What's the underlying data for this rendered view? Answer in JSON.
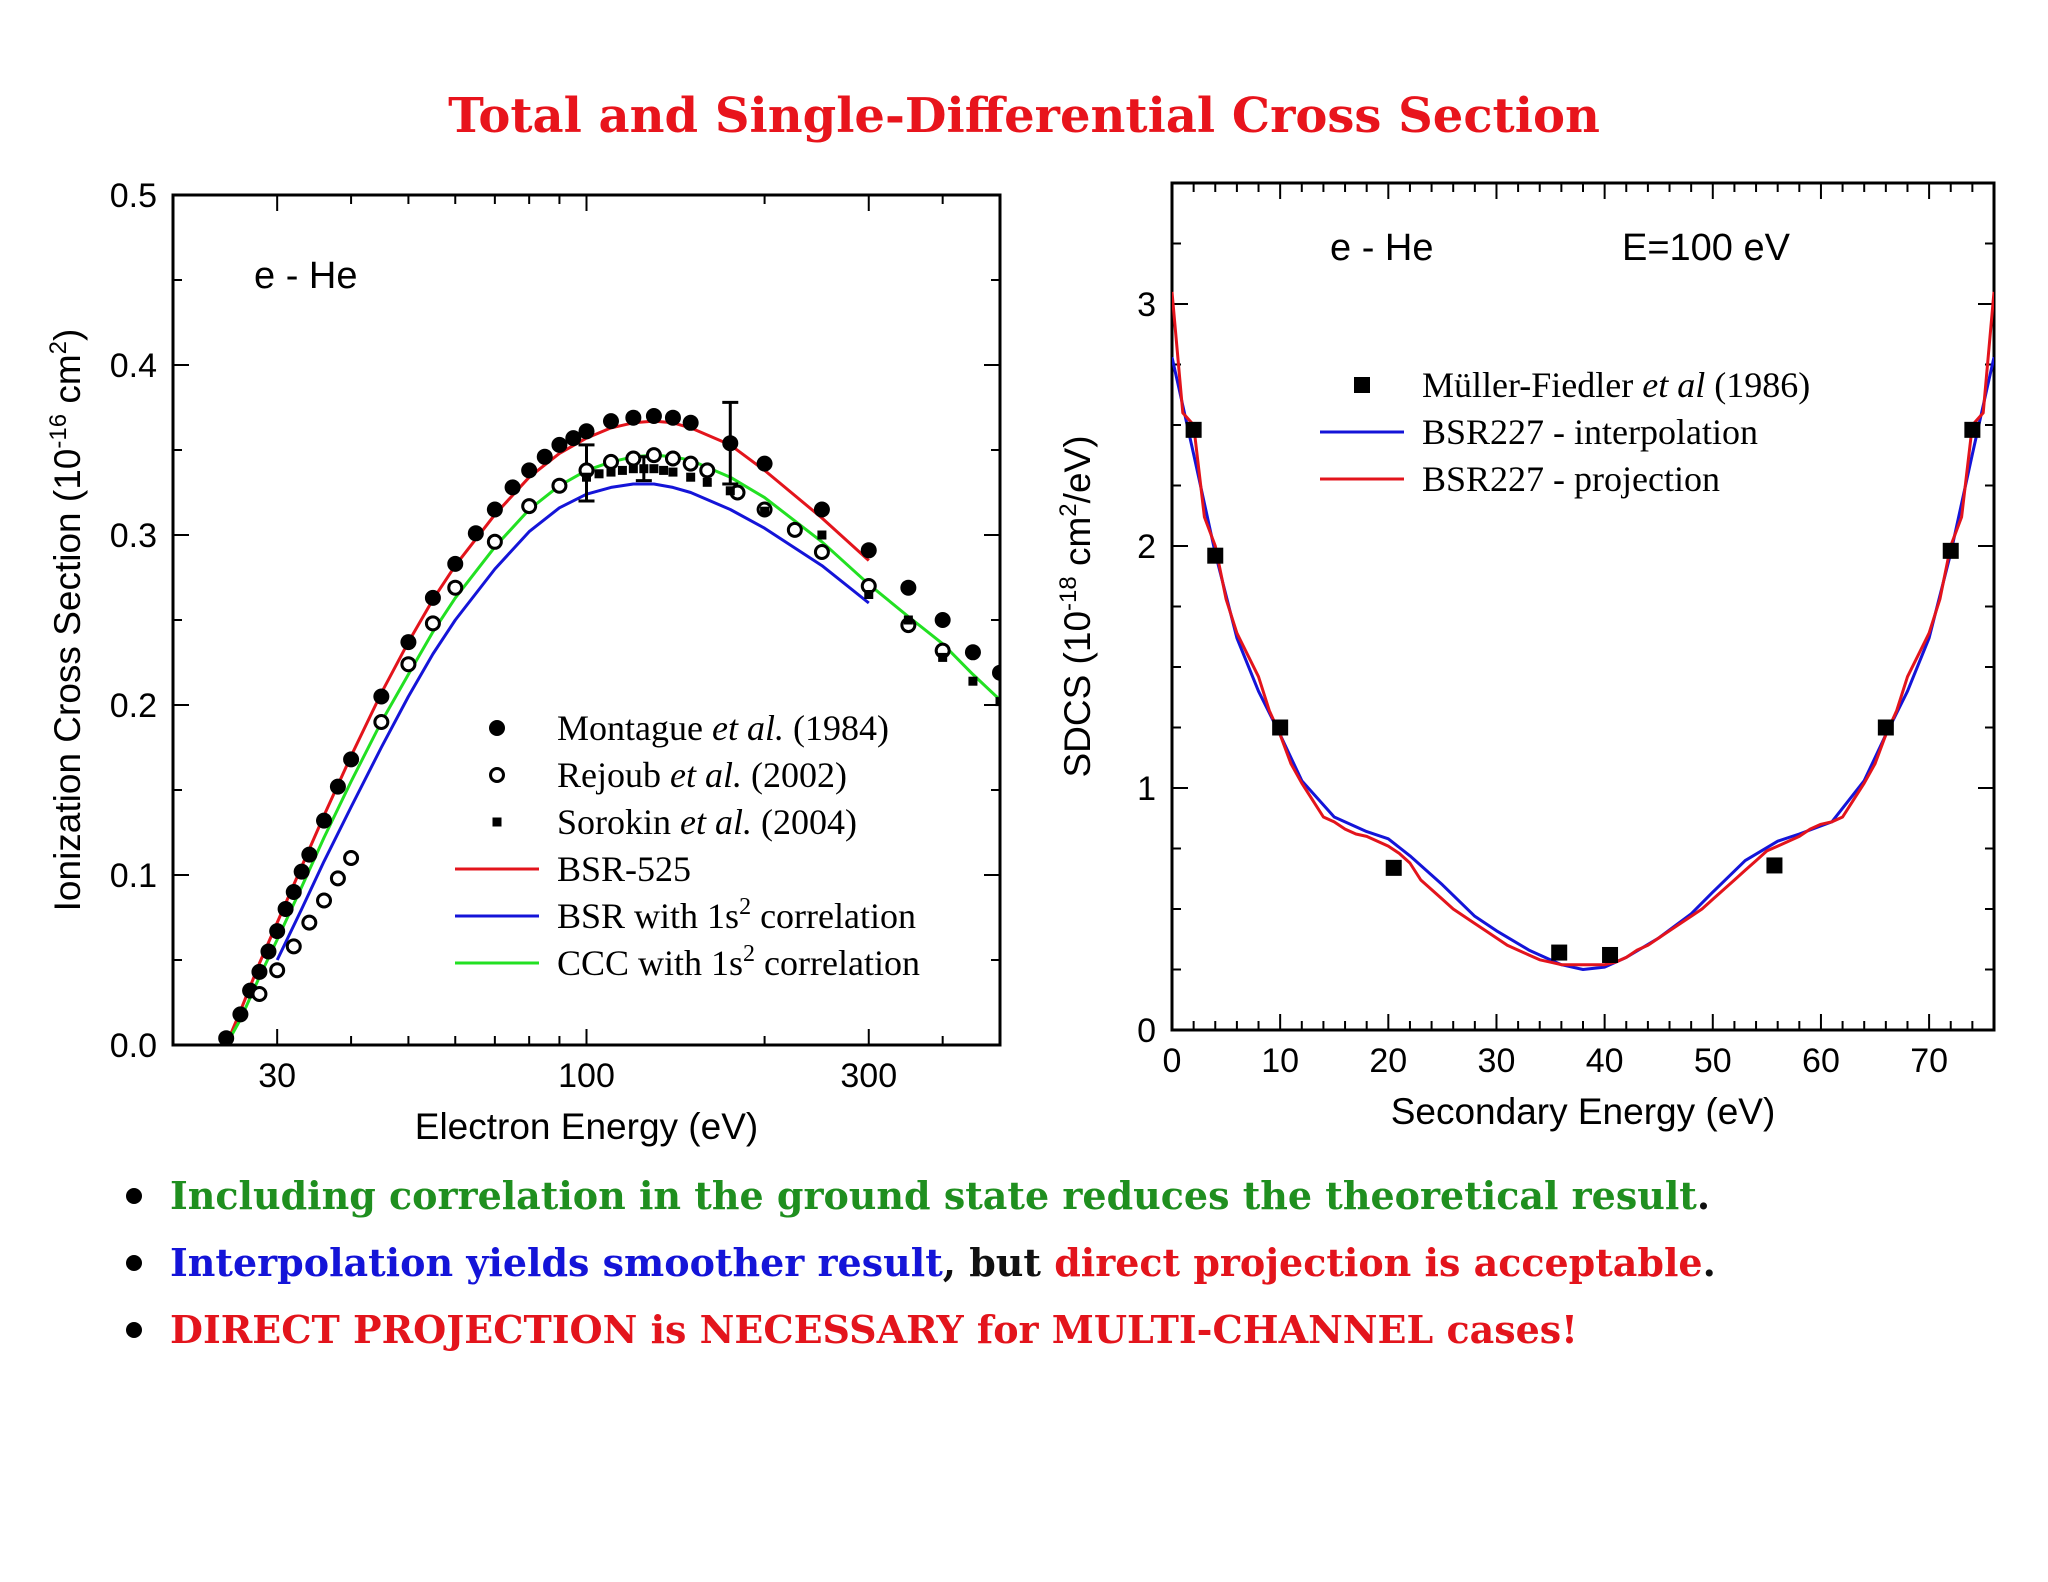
{
  "title": "Total and Single-Differential Cross Section",
  "chart_data": [
    {
      "type": "scatter",
      "annotation": "e - He",
      "xlabel": "Electron Energy (eV)",
      "ylabel": "Ionization Cross Section (10",
      "ylabel_sup": "-16",
      "ylabel_mid": " cm",
      "ylabel_sup2": "2",
      "ylabel_end": ")",
      "x_scale": "log",
      "xlim": [
        20,
        500
      ],
      "ylim": [
        0,
        0.5
      ],
      "x_ticks": [
        30,
        100,
        300
      ],
      "x_tick_labels": [
        "30",
        "100",
        "300"
      ],
      "y_ticks": [
        0.0,
        0.1,
        0.2,
        0.3,
        0.4,
        0.5
      ],
      "y_tick_labels": [
        "0.0",
        "0.1",
        "0.2",
        "0.3",
        "0.4",
        "0.5"
      ],
      "legend_position": "bottom-right",
      "series": [
        {
          "name": "Montague",
          "name_italic": "et al.",
          "name_end": "(1984)",
          "kind": "marker",
          "marker": "filled-circle",
          "color": "#000000",
          "x": [
            24.6,
            26,
            27,
            28,
            29,
            30,
            31,
            32,
            33,
            34,
            36,
            38,
            40,
            45,
            50,
            55,
            60,
            65,
            70,
            75,
            80,
            85,
            90,
            95,
            100,
            110,
            120,
            130,
            140,
            150,
            175,
            200,
            250,
            300,
            350,
            400,
            450,
            500
          ],
          "y": [
            0.004,
            0.018,
            0.032,
            0.043,
            0.055,
            0.067,
            0.08,
            0.09,
            0.102,
            0.112,
            0.132,
            0.152,
            0.168,
            0.205,
            0.237,
            0.263,
            0.283,
            0.301,
            0.315,
            0.328,
            0.338,
            0.346,
            0.353,
            0.357,
            0.361,
            0.367,
            0.369,
            0.37,
            0.369,
            0.366,
            0.354,
            0.342,
            0.315,
            0.291,
            0.269,
            0.25,
            0.231,
            0.219
          ]
        },
        {
          "name": "Rejoub",
          "name_italic": "et al.",
          "name_end": "(2002)",
          "kind": "marker",
          "marker": "open-circle",
          "color": "#000000",
          "x": [
            28,
            30,
            32,
            34,
            36,
            38,
            40,
            45,
            50,
            55,
            60,
            70,
            80,
            90,
            100,
            110,
            120,
            130,
            140,
            150,
            160,
            180,
            200,
            225,
            250,
            300,
            350,
            400
          ],
          "y": [
            0.03,
            0.044,
            0.058,
            0.072,
            0.085,
            0.098,
            0.11,
            0.19,
            0.224,
            0.248,
            0.269,
            0.296,
            0.317,
            0.329,
            0.338,
            0.343,
            0.345,
            0.347,
            0.345,
            0.342,
            0.338,
            0.325,
            0.315,
            0.303,
            0.29,
            0.27,
            0.247,
            0.232
          ]
        },
        {
          "name": "Sorokin",
          "name_italic": "et al.",
          "name_end": "(2004)",
          "kind": "marker",
          "marker": "small-square",
          "color": "#000000",
          "x": [
            100,
            105,
            110,
            115,
            120,
            125,
            130,
            135,
            140,
            150,
            160,
            175,
            200,
            250,
            300,
            350,
            400,
            450,
            500
          ],
          "y": [
            0.334,
            0.336,
            0.337,
            0.338,
            0.339,
            0.339,
            0.339,
            0.338,
            0.337,
            0.334,
            0.331,
            0.326,
            0.314,
            0.3,
            0.265,
            0.25,
            0.228,
            0.214,
            0.202
          ]
        },
        {
          "name": "BSR-525",
          "kind": "line",
          "color": "#e3141c",
          "x": [
            24.6,
            26,
            28,
            30,
            33,
            36,
            40,
            45,
            50,
            55,
            60,
            70,
            80,
            90,
            100,
            110,
            120,
            130,
            140,
            150,
            175,
            200,
            250,
            300
          ],
          "y": [
            0.0,
            0.02,
            0.048,
            0.072,
            0.105,
            0.135,
            0.17,
            0.207,
            0.237,
            0.262,
            0.282,
            0.312,
            0.334,
            0.348,
            0.357,
            0.363,
            0.366,
            0.367,
            0.366,
            0.363,
            0.353,
            0.338,
            0.31,
            0.285
          ]
        },
        {
          "name": "BSR with 1s",
          "name_sup": "2",
          "name_end": "correlation",
          "kind": "line",
          "color": "#1414d8",
          "x": [
            30,
            33,
            36,
            40,
            45,
            50,
            55,
            60,
            70,
            80,
            90,
            100,
            110,
            120,
            130,
            140,
            150,
            175,
            200,
            250,
            300
          ],
          "y": [
            0.05,
            0.08,
            0.108,
            0.14,
            0.175,
            0.205,
            0.23,
            0.25,
            0.28,
            0.302,
            0.316,
            0.324,
            0.328,
            0.33,
            0.33,
            0.328,
            0.325,
            0.315,
            0.304,
            0.282,
            0.26
          ]
        },
        {
          "name": "CCC with 1s",
          "name_sup": "2",
          "name_end": "correlation",
          "kind": "line",
          "color": "#22e022",
          "x": [
            24.6,
            26,
            28,
            30,
            33,
            36,
            40,
            45,
            50,
            55,
            60,
            70,
            80,
            90,
            100,
            110,
            120,
            130,
            140,
            150,
            175,
            200,
            250,
            300,
            350,
            400,
            450,
            500
          ],
          "y": [
            0.0,
            0.015,
            0.04,
            0.062,
            0.093,
            0.122,
            0.155,
            0.19,
            0.218,
            0.243,
            0.263,
            0.293,
            0.315,
            0.329,
            0.338,
            0.343,
            0.346,
            0.347,
            0.346,
            0.344,
            0.334,
            0.322,
            0.296,
            0.271,
            0.252,
            0.236,
            0.218,
            0.203
          ]
        }
      ],
      "error_bars": [
        {
          "x": 100,
          "y": 0.336,
          "lo": 0.32,
          "hi": 0.353
        },
        {
          "x": 125,
          "y": 0.339,
          "lo": 0.332,
          "hi": 0.346
        },
        {
          "x": 175,
          "y": 0.354,
          "lo": 0.33,
          "hi": 0.378
        }
      ]
    },
    {
      "type": "scatter",
      "annotation": "e - He",
      "annotation2": "E=100 eV",
      "xlabel": "Secondary Energy (eV)",
      "ylabel": "SDCS (10",
      "ylabel_sup": "-18",
      "ylabel_mid": " cm",
      "ylabel_sup2": "2",
      "ylabel_end": "/eV)",
      "xlim": [
        0,
        76
      ],
      "ylim": [
        0,
        3.5
      ],
      "x_ticks": [
        0,
        10,
        20,
        30,
        40,
        50,
        60,
        70
      ],
      "x_tick_labels": [
        "0",
        "10",
        "20",
        "30",
        "40",
        "50",
        "60",
        "70"
      ],
      "y_ticks": [
        0,
        1,
        2,
        3
      ],
      "y_tick_labels": [
        "0",
        "1",
        "2",
        "3"
      ],
      "legend_position": "top-center",
      "series": [
        {
          "name": "Müller-Fiedler",
          "name_italic": "et al",
          "name_end": "(1986)",
          "kind": "marker",
          "marker": "filled-square",
          "color": "#000000",
          "x": [
            2,
            4,
            10,
            20.5,
            35.8,
            40.5,
            55.7,
            66,
            72,
            74
          ],
          "y": [
            2.48,
            1.96,
            1.25,
            0.67,
            0.32,
            0.31,
            0.68,
            1.25,
            1.98,
            2.48
          ]
        },
        {
          "name": "BSR227 - interpolation",
          "kind": "line",
          "color": "#1414d8",
          "x": [
            0,
            1,
            2,
            4,
            6,
            8,
            10,
            12,
            15,
            18,
            20,
            22,
            25,
            28,
            30,
            33,
            36,
            38,
            40,
            42,
            45,
            48,
            50,
            53,
            56,
            58,
            61,
            64,
            66,
            68,
            70,
            72,
            74,
            75,
            76
          ],
          "y": [
            2.78,
            2.58,
            2.38,
            1.97,
            1.62,
            1.4,
            1.22,
            1.03,
            0.88,
            0.82,
            0.79,
            0.72,
            0.6,
            0.47,
            0.41,
            0.33,
            0.27,
            0.25,
            0.26,
            0.3,
            0.38,
            0.48,
            0.57,
            0.7,
            0.78,
            0.81,
            0.86,
            1.03,
            1.22,
            1.4,
            1.62,
            1.97,
            2.38,
            2.58,
            2.78
          ]
        },
        {
          "name": "BSR227 - projection",
          "kind": "line",
          "color": "#e3141c",
          "x": [
            0,
            1,
            2,
            3,
            4,
            5,
            6,
            7,
            8,
            9,
            10,
            11,
            12,
            13,
            14,
            15,
            16,
            17,
            18,
            19,
            20,
            21,
            22,
            23,
            24,
            25,
            26,
            27,
            28,
            29,
            30,
            31,
            32,
            33,
            34,
            35,
            36,
            37,
            38,
            39,
            40,
            41,
            42,
            43,
            44,
            45,
            46,
            47,
            48,
            49,
            50,
            51,
            52,
            53,
            54,
            55,
            56,
            57,
            58,
            59,
            60,
            61,
            62,
            63,
            64,
            65,
            66,
            67,
            68,
            69,
            70,
            71,
            72,
            73,
            74,
            75,
            76
          ],
          "y": [
            3.05,
            2.55,
            2.5,
            2.12,
            2.0,
            1.78,
            1.64,
            1.55,
            1.46,
            1.32,
            1.22,
            1.1,
            1.02,
            0.95,
            0.88,
            0.86,
            0.83,
            0.81,
            0.8,
            0.78,
            0.76,
            0.73,
            0.69,
            0.62,
            0.58,
            0.54,
            0.5,
            0.47,
            0.44,
            0.41,
            0.38,
            0.35,
            0.33,
            0.31,
            0.29,
            0.28,
            0.27,
            0.27,
            0.27,
            0.27,
            0.27,
            0.28,
            0.3,
            0.33,
            0.35,
            0.38,
            0.41,
            0.44,
            0.47,
            0.5,
            0.54,
            0.58,
            0.62,
            0.66,
            0.7,
            0.74,
            0.76,
            0.78,
            0.8,
            0.83,
            0.85,
            0.86,
            0.88,
            0.95,
            1.02,
            1.1,
            1.22,
            1.32,
            1.46,
            1.55,
            1.64,
            1.78,
            2.0,
            2.12,
            2.5,
            2.55,
            3.05
          ]
        }
      ]
    }
  ],
  "bullets": [
    {
      "parts": [
        {
          "text": "Including correlation in the ground state reduces the theoretical result",
          "color": "green"
        },
        {
          "text": ".",
          "color": "blk"
        }
      ]
    },
    {
      "parts": [
        {
          "text": "Interpolation yields smoother result",
          "color": "blue"
        },
        {
          "text": ", but ",
          "color": "blk"
        },
        {
          "text": "direct projection is acceptable",
          "color": "red"
        },
        {
          "text": ".",
          "color": "blk"
        }
      ]
    },
    {
      "parts": [
        {
          "text": "DIRECT PROJECTION is NECESSARY for MULTI-CHANNEL cases!",
          "color": "red"
        }
      ]
    }
  ]
}
